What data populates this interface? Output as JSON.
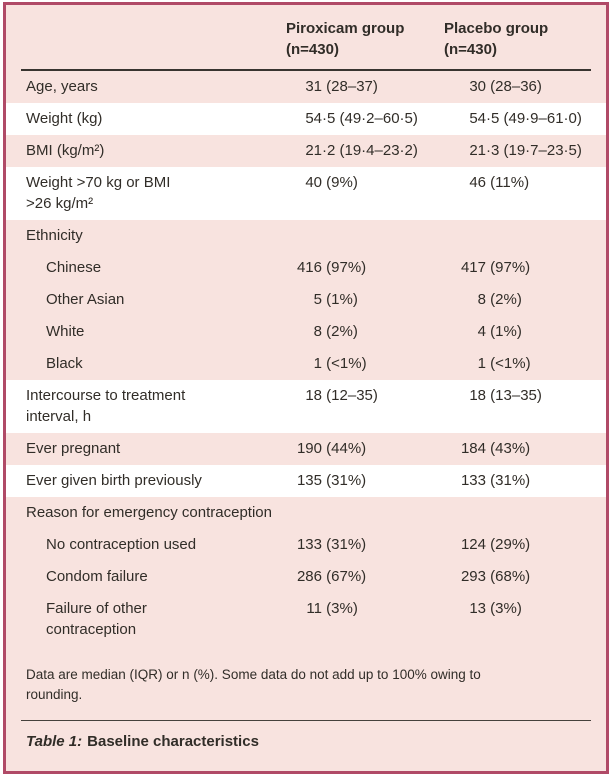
{
  "table": {
    "columns": [
      {
        "label": "Piroxicam group\n(n=430)"
      },
      {
        "label": "Placebo group\n(n=430)"
      }
    ],
    "rows": [
      {
        "label": "Age, years",
        "piroxicam": "31 (28–37)",
        "placebo": "30 (28–36)",
        "indent": false,
        "section": false,
        "white": false
      },
      {
        "label": "Weight (kg)",
        "piroxicam": "54·5 (49·2–60·5)",
        "placebo": "54·5 (49·9–61·0)",
        "indent": false,
        "section": false,
        "white": true
      },
      {
        "label": "BMI (kg/m²)",
        "piroxicam": "21·2 (19·4–23·2)",
        "placebo": "21·3 (19·7–23·5)",
        "indent": false,
        "section": false,
        "white": false
      },
      {
        "label": "Weight >70 kg or BMI\n>26 kg/m²",
        "piroxicam": "40 (9%)",
        "placebo": "46 (11%)",
        "indent": false,
        "section": false,
        "white": true
      },
      {
        "label": "Ethnicity",
        "piroxicam": "",
        "placebo": "",
        "indent": false,
        "section": true,
        "white": false
      },
      {
        "label": "Chinese",
        "piroxicam": "416 (97%)",
        "placebo": "417 (97%)",
        "indent": true,
        "section": false,
        "white": false
      },
      {
        "label": "Other Asian",
        "piroxicam": "5 (1%)",
        "placebo": "8 (2%)",
        "indent": true,
        "section": false,
        "white": false
      },
      {
        "label": "White",
        "piroxicam": "8 (2%)",
        "placebo": "4 (1%)",
        "indent": true,
        "section": false,
        "white": false
      },
      {
        "label": "Black",
        "piroxicam": "1 (<1%)",
        "placebo": "1 (<1%)",
        "indent": true,
        "section": false,
        "white": false
      },
      {
        "label": "Intercourse to treatment\ninterval, h",
        "piroxicam": "18 (12–35)",
        "placebo": "18 (13–35)",
        "indent": false,
        "section": false,
        "white": true
      },
      {
        "label": "Ever pregnant",
        "piroxicam": "190 (44%)",
        "placebo": "184 (43%)",
        "indent": false,
        "section": false,
        "white": false
      },
      {
        "label": "Ever given birth previously",
        "piroxicam": "135 (31%)",
        "placebo": "133 (31%)",
        "indent": false,
        "section": false,
        "white": true
      },
      {
        "label": "Reason for emergency contraception",
        "piroxicam": "",
        "placebo": "",
        "indent": false,
        "section": true,
        "white": false
      },
      {
        "label": "No contraception used",
        "piroxicam": "133 (31%)",
        "placebo": "124 (29%)",
        "indent": true,
        "section": false,
        "white": false
      },
      {
        "label": "Condom failure",
        "piroxicam": "286 (67%)",
        "placebo": "293 (68%)",
        "indent": true,
        "section": false,
        "white": false
      },
      {
        "label": "Failure of other\ncontraception",
        "piroxicam": "11 (3%)",
        "placebo": "13 (3%)",
        "indent": true,
        "section": false,
        "white": false
      }
    ],
    "footnote": "Data are median (IQR) or n (%). Some data do not add up to 100% owing to rounding.",
    "caption_label": "Table 1:",
    "caption_text": "Baseline characteristics"
  },
  "colors": {
    "frame_border": "#b04a67",
    "background_pink": "#f8e3df",
    "row_white": "#ffffff",
    "text": "#312d28",
    "header_rule": "#38342f"
  }
}
